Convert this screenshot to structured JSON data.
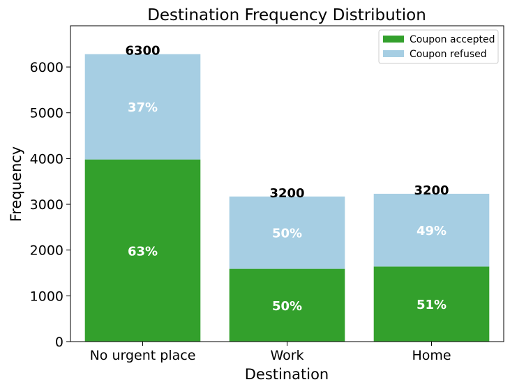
{
  "chart_data": {
    "type": "bar",
    "stacked": true,
    "title": "Destination Frequency Distribution",
    "xlabel": "Destination",
    "ylabel": "Frequency",
    "ylim": [
      0,
      6900
    ],
    "yticks": [
      0,
      1000,
      2000,
      3000,
      4000,
      5000,
      6000
    ],
    "categories": [
      "No urgent place",
      "Work",
      "Home"
    ],
    "series": [
      {
        "name": "Coupon accepted",
        "color": "#33a02c",
        "values": [
          3980,
          1590,
          1640
        ],
        "labels": [
          "63%",
          "50%",
          "51%"
        ]
      },
      {
        "name": "Coupon refused",
        "color": "#a6cee3",
        "values": [
          2300,
          1580,
          1590
        ],
        "labels": [
          "37%",
          "50%",
          "49%"
        ]
      }
    ],
    "totals": [
      "6300",
      "3200",
      "3200"
    ],
    "legend_position": "top-right",
    "grid": false
  }
}
